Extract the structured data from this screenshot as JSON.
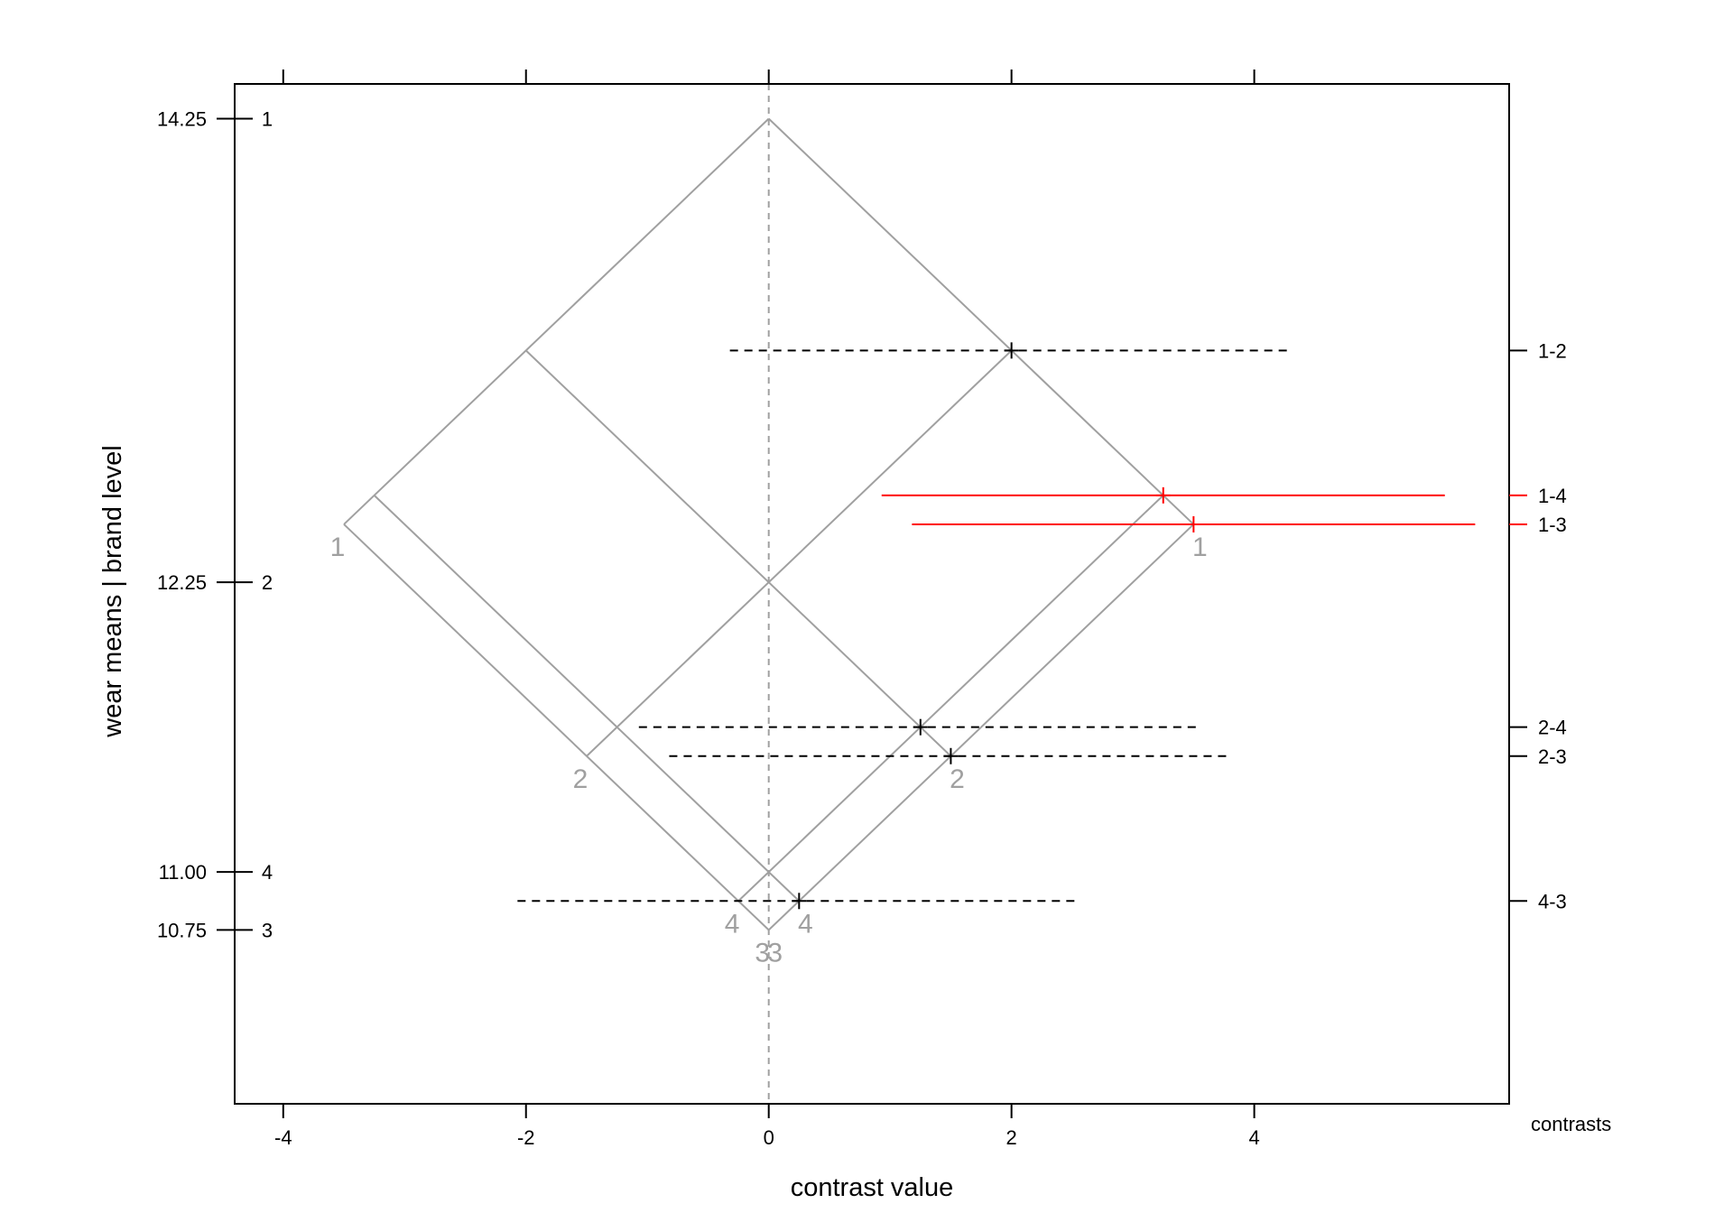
{
  "chart_data": {
    "type": "mean-mean multiple comparisons plot",
    "xlabel": "contrast value",
    "ylabel": "wear means  |  brand level",
    "right_axis_title": "contrasts",
    "xlim": [
      -4.4,
      6.1
    ],
    "ylim": [
      10.0,
      14.4
    ],
    "x_ticks": [
      -4,
      -2,
      0,
      2,
      4
    ],
    "x_tick_labels": [
      "-4",
      "-2",
      "0",
      "2",
      "4"
    ],
    "colors": {
      "significant": "#ff0000",
      "not_significant": "#000000",
      "isomeans": "#a0a0a0",
      "zero_line": "#a0a0a0"
    },
    "means": [
      {
        "level": "1",
        "value": 14.25,
        "label": "14.25"
      },
      {
        "level": "2",
        "value": 12.25,
        "label": "12.25"
      },
      {
        "level": "4",
        "value": 11.0,
        "label": "11.00"
      },
      {
        "level": "3",
        "value": 10.75,
        "label": "10.75"
      }
    ],
    "contrasts": [
      {
        "name": "1-2",
        "estimate": 2.0,
        "lower": -0.32,
        "upper": 4.32,
        "significant": false
      },
      {
        "name": "1-4",
        "estimate": 3.25,
        "lower": 0.93,
        "upper": 5.57,
        "significant": true
      },
      {
        "name": "1-3",
        "estimate": 3.5,
        "lower": 1.18,
        "upper": 5.82,
        "significant": true
      },
      {
        "name": "2-4",
        "estimate": 1.25,
        "lower": -1.07,
        "upper": 3.57,
        "significant": false
      },
      {
        "name": "2-3",
        "estimate": 1.5,
        "lower": -0.82,
        "upper": 3.82,
        "significant": false
      },
      {
        "name": "4-3",
        "estimate": 0.25,
        "lower": -2.07,
        "upper": 2.57,
        "significant": false
      }
    ]
  }
}
